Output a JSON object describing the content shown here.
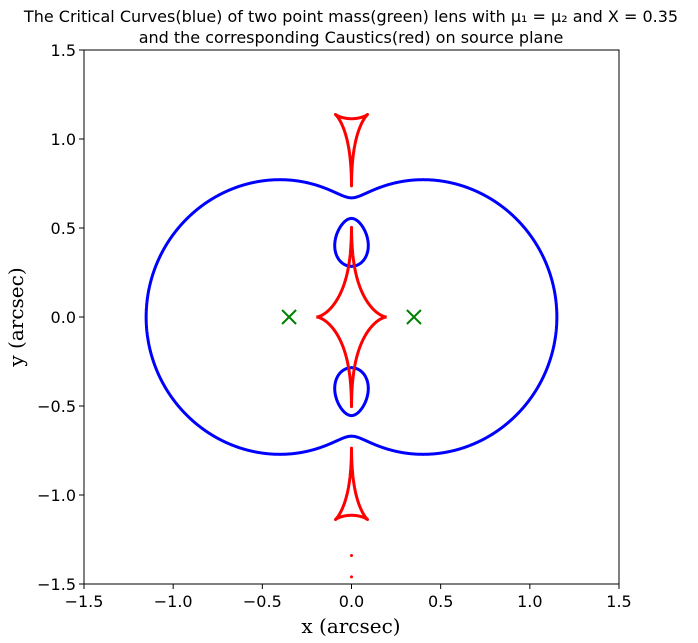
{
  "chart_data": {
    "type": "scatter",
    "title_line1": "The Critical Curves(blue) of two point mass(green) lens with μ₁ = μ₂ and X = 0.35",
    "title_line2": "and the corresponding Caustics(red) on source plane",
    "xlabel": "x (arcsec)",
    "ylabel": "y (arcsec)",
    "xlim": [
      -1.5,
      1.5
    ],
    "ylim": [
      -1.5,
      1.5
    ],
    "xticks": [
      -1.5,
      -1.0,
      -0.5,
      0.0,
      0.5,
      1.0,
      1.5
    ],
    "yticks": [
      -1.5,
      -1.0,
      -0.5,
      0.0,
      0.5,
      1.0,
      1.5
    ],
    "xtick_labels": [
      "−1.5",
      "−1.0",
      "−0.5",
      "0.0",
      "0.5",
      "1.0",
      "1.5"
    ],
    "ytick_labels": [
      "−1.5",
      "−1.0",
      "−0.5",
      "0.0",
      "0.5",
      "1.0",
      "1.5"
    ],
    "grid": false,
    "series": [
      {
        "role": "critical-curves",
        "color": "#0000ff",
        "lens_mass_ratio": 1.0,
        "lens_x": 0.35
      },
      {
        "role": "caustics",
        "color": "#ff0000",
        "stray_points": [
          [
            0.0,
            -1.34
          ],
          [
            0.0,
            -1.46
          ]
        ]
      },
      {
        "role": "lens-positions",
        "color": "#008000",
        "marker": "x",
        "points": [
          [
            -0.35,
            0.0
          ],
          [
            0.35,
            0.0
          ]
        ]
      }
    ]
  }
}
